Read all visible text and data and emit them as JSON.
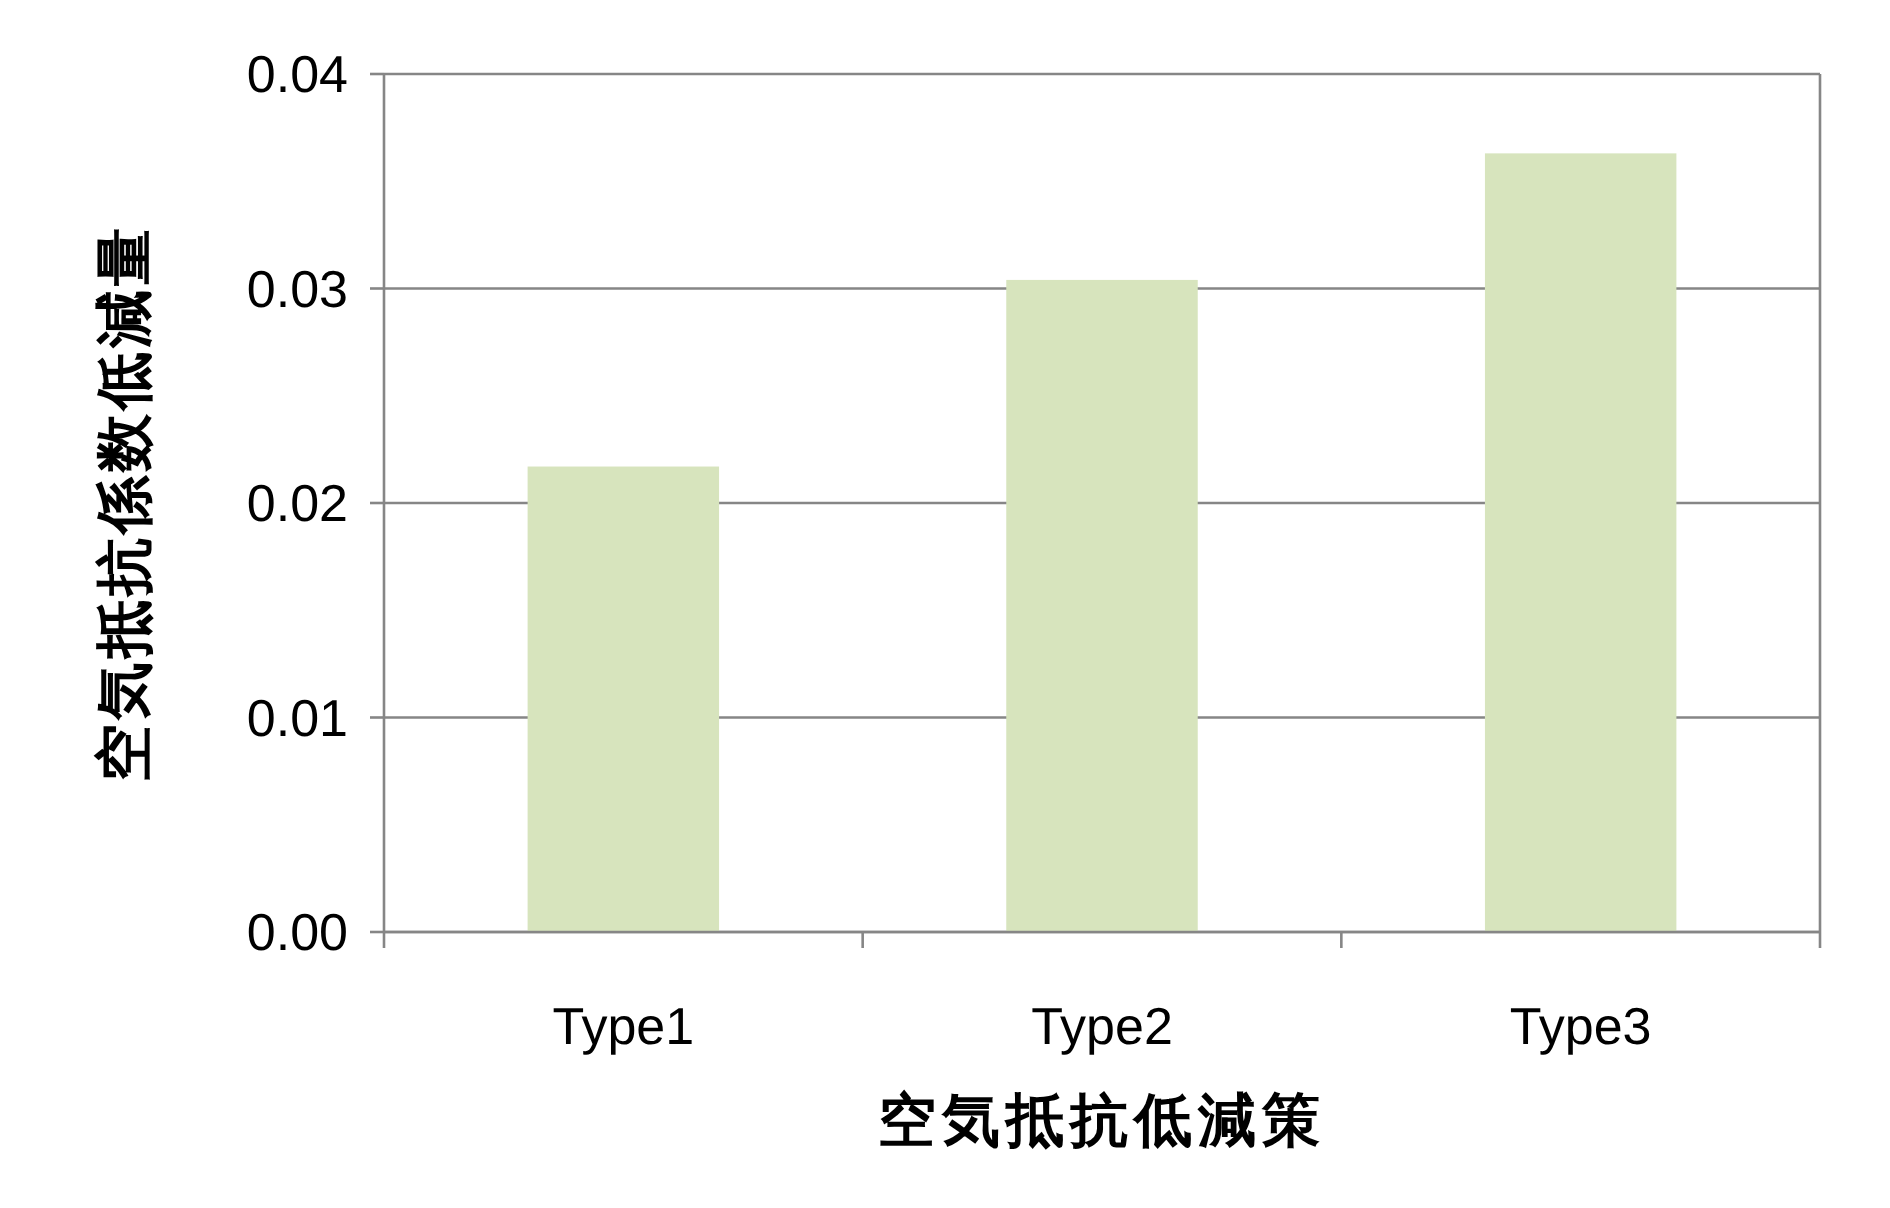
{
  "chart_data": {
    "type": "bar",
    "xlabel": "空気抵抗低減策",
    "ylabel": "空気抵抗係数低減量",
    "categories": [
      "Type1",
      "Type2",
      "Type3"
    ],
    "values": [
      0.0217,
      0.0304,
      0.0363
    ],
    "color": "#d7e4bd",
    "ylim": [
      0,
      0.04
    ],
    "yticks": [
      {
        "value": 0,
        "label": "0.00"
      },
      {
        "value": 0.01,
        "label": "0.01"
      },
      {
        "value": 0.02,
        "label": "0.02"
      },
      {
        "value": 0.03,
        "label": "0.03"
      },
      {
        "value": 0.04,
        "label": "0.04"
      }
    ],
    "grid": "y"
  }
}
